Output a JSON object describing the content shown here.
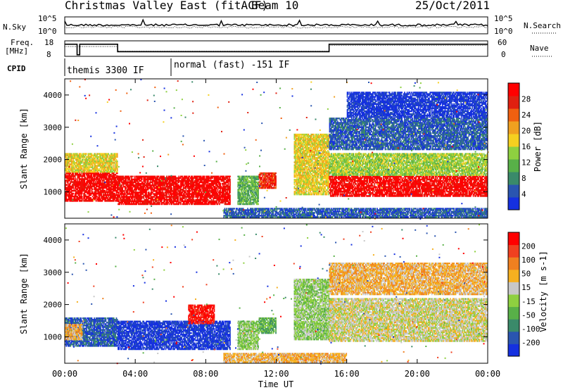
{
  "header": {
    "title": "Christmas Valley East (fitACF)",
    "beam": "Beam 10",
    "date": "25/Oct/2011"
  },
  "params": {
    "nsky_label": "N.Sky",
    "nsky_ticks": [
      "10^5",
      "10^0"
    ],
    "nsearch_label": "N.Search",
    "freq_label_line1": "Freq.",
    "freq_label_line2": "[MHz]",
    "freq_ticks": [
      "18",
      "8"
    ],
    "nave_label": "Nave",
    "nave_ticks": [
      "60",
      "0"
    ],
    "cpid_label": "CPID",
    "cpid_modes": [
      {
        "label": "themis 3300 IF",
        "start_hour": 0.1
      },
      {
        "label": "normal (fast) -151 IF",
        "start_hour": 6.0
      }
    ],
    "freq_steps": [
      [
        0,
        15.8
      ],
      [
        0.7,
        9.0
      ],
      [
        0.85,
        15.8
      ],
      [
        3.0,
        11.0
      ],
      [
        15.0,
        15.8
      ],
      [
        24,
        15.8
      ]
    ],
    "nave_steps": [
      [
        0,
        38
      ],
      [
        3.0,
        20
      ],
      [
        15.0,
        42
      ],
      [
        24,
        42
      ]
    ]
  },
  "chart_data": [
    {
      "type": "heatmap",
      "name": "power",
      "ylabel": "Slant Range [km]",
      "yticks": [
        1000,
        2000,
        3000,
        4000
      ],
      "ylim": [
        180,
        4500
      ],
      "xlim": [
        0,
        24
      ],
      "colorbar": {
        "label": "Power [dB]",
        "ticks": [
          4,
          8,
          12,
          16,
          20,
          24,
          28
        ],
        "colors": [
          "#1530e0",
          "#2a55b0",
          "#3a8a6a",
          "#58b048",
          "#8ed040",
          "#f5d020",
          "#f0a020",
          "#f06010",
          "#e02010",
          "#ff0000"
        ]
      },
      "regions": [
        {
          "t0": 0.0,
          "t1": 3.0,
          "r0": 700,
          "r1": 1600,
          "level": 9
        },
        {
          "t0": 0.0,
          "t1": 3.0,
          "r0": 1600,
          "r1": 2200,
          "level": 5
        },
        {
          "t0": 3.0,
          "t1": 9.4,
          "r0": 600,
          "r1": 1500,
          "level": 9
        },
        {
          "t0": 9.8,
          "t1": 11.0,
          "r0": 600,
          "r1": 1500,
          "level": 3
        },
        {
          "t0": 11.0,
          "t1": 12.0,
          "r0": 1100,
          "r1": 1600,
          "level": 8
        },
        {
          "t0": 13.0,
          "t1": 15.0,
          "r0": 900,
          "r1": 2800,
          "level": 5
        },
        {
          "t0": 15.0,
          "t1": 24.0,
          "r0": 850,
          "r1": 1500,
          "level": 9
        },
        {
          "t0": 15.0,
          "t1": 24.0,
          "r0": 1500,
          "r1": 2200,
          "level": 4
        },
        {
          "t0": 15.0,
          "t1": 24.0,
          "r0": 2300,
          "r1": 3300,
          "level": 1
        },
        {
          "t0": 16.0,
          "t1": 24.0,
          "r0": 3300,
          "r1": 4100,
          "level": 0
        },
        {
          "t0": 9.0,
          "t1": 24.0,
          "r0": 200,
          "r1": 500,
          "level": 1
        }
      ]
    },
    {
      "type": "heatmap",
      "name": "velocity",
      "ylabel": "Slant Range [km]",
      "yticks": [
        1000,
        2000,
        3000,
        4000
      ],
      "ylim": [
        180,
        4500
      ],
      "xlim": [
        0,
        24
      ],
      "xticks": [
        "00:00",
        "04:00",
        "08:00",
        "12:00",
        "16:00",
        "20:00",
        "00:00"
      ],
      "xlabel": "Time UT",
      "colorbar": {
        "label": "Velocity [m s-1]",
        "ticks": [
          200,
          100,
          50,
          15,
          -15,
          -50,
          -100,
          -200
        ],
        "colors": [
          "#1530e0",
          "#2a55b0",
          "#3a8a6a",
          "#58b048",
          "#8ed040",
          "#c8c8c8",
          "#f5b020",
          "#f08020",
          "#f04020",
          "#ff0000"
        ]
      },
      "regions": [
        {
          "t0": 0.0,
          "t1": 3.0,
          "r0": 700,
          "r1": 1600,
          "level": 1
        },
        {
          "t0": 0.0,
          "t1": 1.0,
          "r0": 900,
          "r1": 1400,
          "level": 6
        },
        {
          "t0": 3.0,
          "t1": 9.4,
          "r0": 600,
          "r1": 1500,
          "level": 0
        },
        {
          "t0": 7.0,
          "t1": 8.5,
          "r0": 1400,
          "r1": 2000,
          "level": 9
        },
        {
          "t0": 9.8,
          "t1": 11.0,
          "r0": 600,
          "r1": 1500,
          "level": 4
        },
        {
          "t0": 11.0,
          "t1": 12.0,
          "r0": 1100,
          "r1": 1600,
          "level": 3
        },
        {
          "t0": 13.0,
          "t1": 15.0,
          "r0": 900,
          "r1": 2800,
          "level": 4
        },
        {
          "t0": 15.0,
          "t1": 24.0,
          "r0": 850,
          "r1": 2200,
          "level": 5
        },
        {
          "t0": 15.0,
          "t1": 24.0,
          "r0": 2300,
          "r1": 3300,
          "level": 6
        },
        {
          "t0": 9.0,
          "t1": 16.0,
          "r0": 200,
          "r1": 500,
          "level": 6
        }
      ]
    }
  ]
}
